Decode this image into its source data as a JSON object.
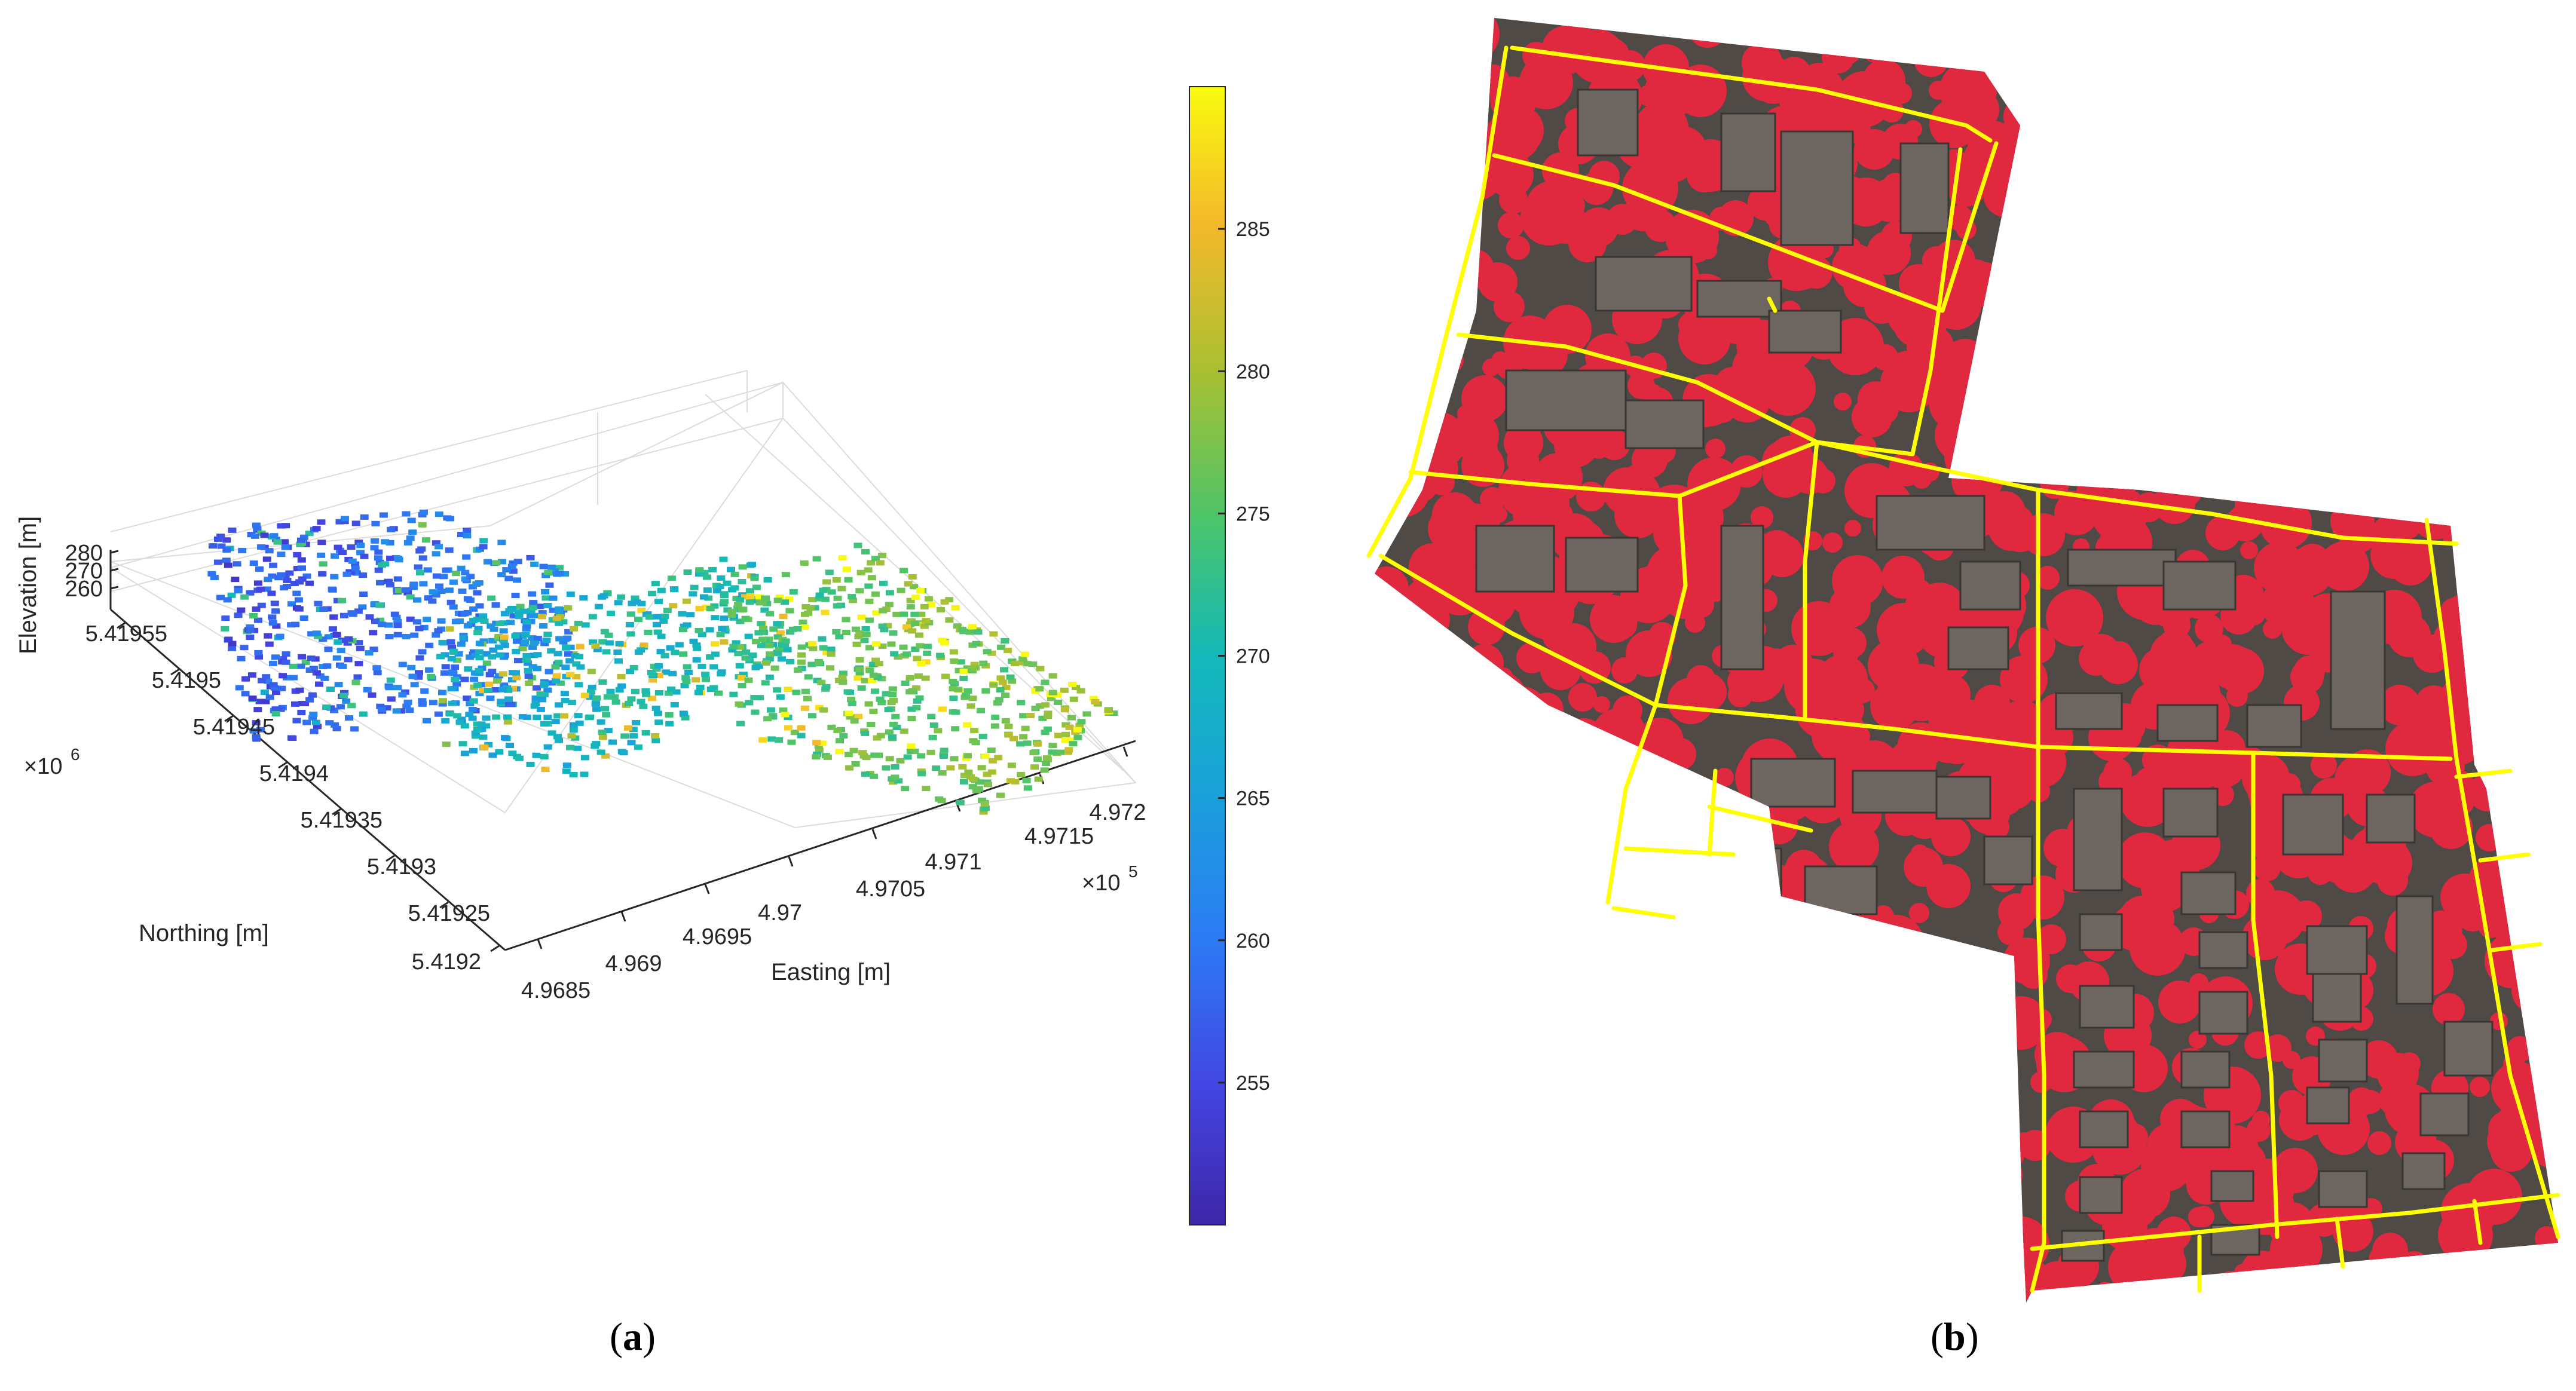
{
  "chart_data": [
    {
      "type": "scatter",
      "subtype": "3d-point-cloud",
      "panel_label": "a",
      "xlabel": "Easting [m]",
      "ylabel": "Northing [m]",
      "zlabel": "Elevation [m]",
      "x_ticks": [
        "4.9685",
        "4.969",
        "4.9695",
        "4.97",
        "4.9705",
        "4.971",
        "4.9715",
        "4.972"
      ],
      "x_multiplier": "×10",
      "x_exponent": "5",
      "y_ticks": [
        "5.4192",
        "5.41925",
        "5.4193",
        "5.41935",
        "5.4194",
        "5.41945",
        "5.4195",
        "5.41955"
      ],
      "y_multiplier": "×10",
      "y_exponent": "6",
      "z_ticks": [
        "260",
        "270",
        "280"
      ],
      "colorbar": {
        "colormap": "parula",
        "range": [
          250,
          290
        ],
        "ticks": [
          "255",
          "260",
          "265",
          "270",
          "275",
          "280",
          "285"
        ]
      },
      "grid": true
    }
  ],
  "panel_b": {
    "panel_label": "b",
    "tree_color": "#e0283e",
    "road_color": "#ffff00",
    "roof_color": "#6d6660"
  },
  "captions": {
    "a": "a",
    "b": "b"
  },
  "colors": {
    "parula_low": "#3e26a8",
    "parula_mid": "#13b9b9",
    "parula_high": "#f9fb0e"
  }
}
